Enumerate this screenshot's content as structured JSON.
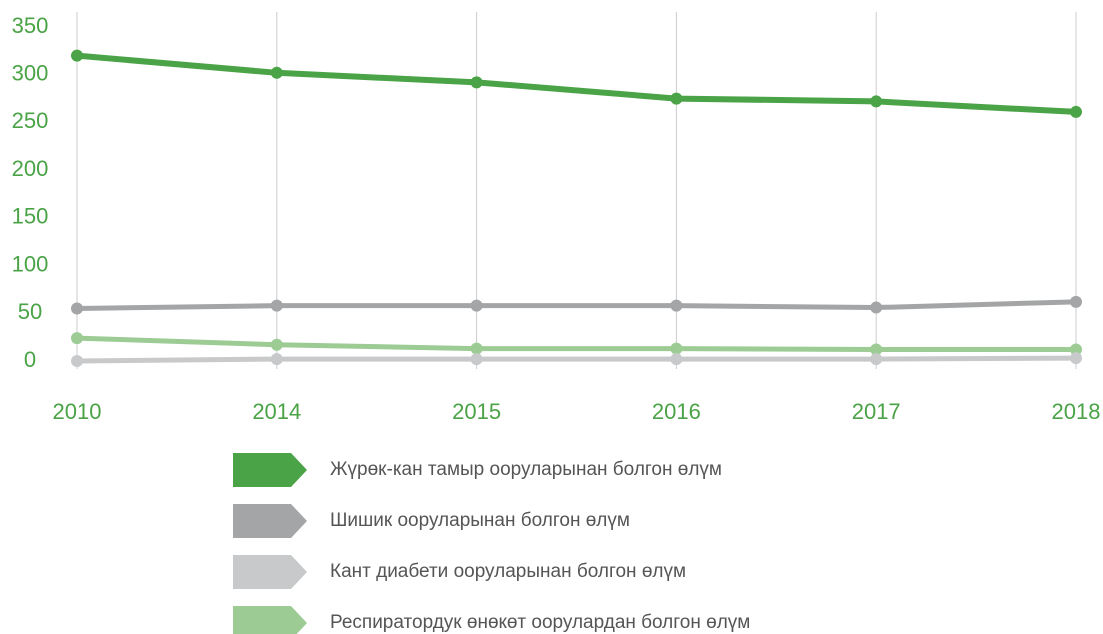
{
  "chart_data": {
    "type": "line",
    "categories": [
      "2010",
      "2014",
      "2015",
      "2016",
      "2017",
      "2018"
    ],
    "series": [
      {
        "name": "Жүрөк-кан тамыр ооруларынан болгон өлүм",
        "color": "#4aa346",
        "values": [
          320,
          302,
          292,
          275,
          272,
          261
        ]
      },
      {
        "name": "Шишик ооруларынан болгон өлүм",
        "color": "#a3a5a6",
        "values": [
          55,
          58,
          58,
          58,
          56,
          62
        ]
      },
      {
        "name": "Кант диабети ооруларынан болгон өлүм",
        "color": "#c8c9cb",
        "values": [
          0,
          2,
          2,
          2,
          2,
          3
        ]
      },
      {
        "name": "Респиратордук өнөкөт оорулардан болгон өлүм",
        "color": "#9ccb94",
        "values": [
          24,
          17,
          13,
          13,
          12,
          12
        ]
      }
    ],
    "ylim": [
      0,
      350
    ],
    "yticks": [
      0,
      50,
      100,
      150,
      200,
      250,
      300,
      350
    ],
    "grid": true
  }
}
